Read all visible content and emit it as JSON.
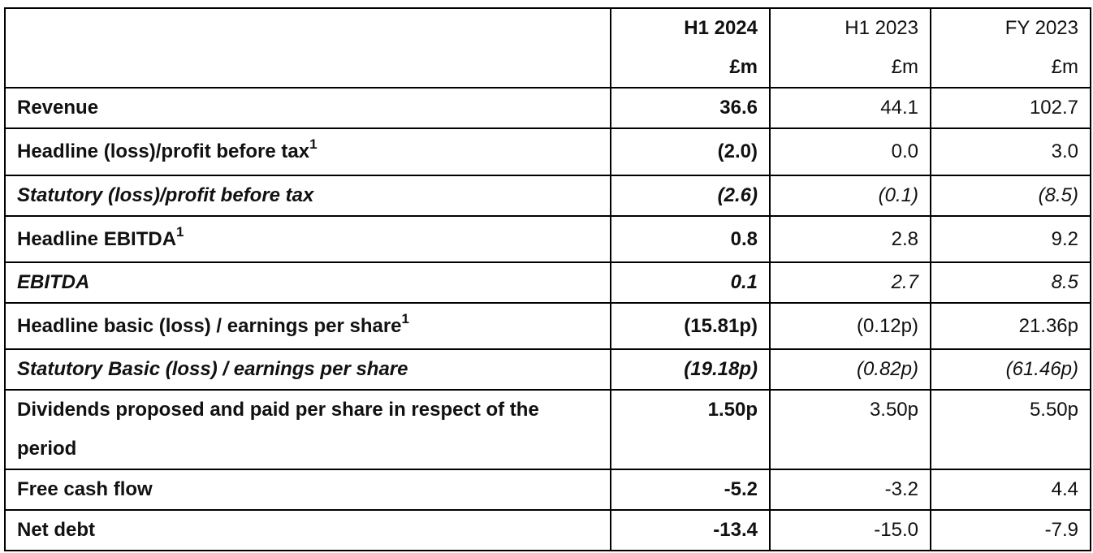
{
  "header": {
    "columns": [
      {
        "period": "H1 2024",
        "unit": "£m"
      },
      {
        "period": "H1 2023",
        "unit": "£m"
      },
      {
        "period": "FY 2023",
        "unit": "£m"
      }
    ]
  },
  "rows": [
    {
      "label": "Revenue",
      "sup": "",
      "values": [
        "36.6",
        "44.1",
        "102.7"
      ]
    },
    {
      "label": "Headline (loss)/profit before tax",
      "sup": "1",
      "values": [
        "(2.0)",
        "0.0",
        "3.0"
      ]
    },
    {
      "label": "Statutory (loss)/profit before tax",
      "sup": "",
      "values": [
        "(2.6)",
        "(0.1)",
        "(8.5)"
      ]
    },
    {
      "label": "Headline EBITDA",
      "sup": "1",
      "values": [
        "0.8",
        "2.8",
        "9.2"
      ]
    },
    {
      "label": "EBITDA",
      "sup": "",
      "values": [
        "0.1",
        "2.7",
        "8.5"
      ]
    },
    {
      "label": "Headline basic (loss) / earnings per share",
      "sup": "1",
      "values": [
        "(15.81p)",
        "(0.12p)",
        "21.36p"
      ]
    },
    {
      "label": "Statutory Basic (loss) / earnings per share",
      "sup": "",
      "values": [
        "(19.18p)",
        "(0.82p)",
        "(61.46p)"
      ]
    },
    {
      "label": "Dividends proposed and paid per share in respect of the period",
      "sup": "",
      "values": [
        "1.50p",
        "3.50p",
        "5.50p"
      ]
    },
    {
      "label": "Free cash flow",
      "sup": "",
      "values": [
        "-5.2",
        "-3.2",
        "4.4"
      ]
    },
    {
      "label": "Net debt",
      "sup": "",
      "values": [
        "-13.4",
        "-15.0",
        "-7.9"
      ]
    }
  ]
}
